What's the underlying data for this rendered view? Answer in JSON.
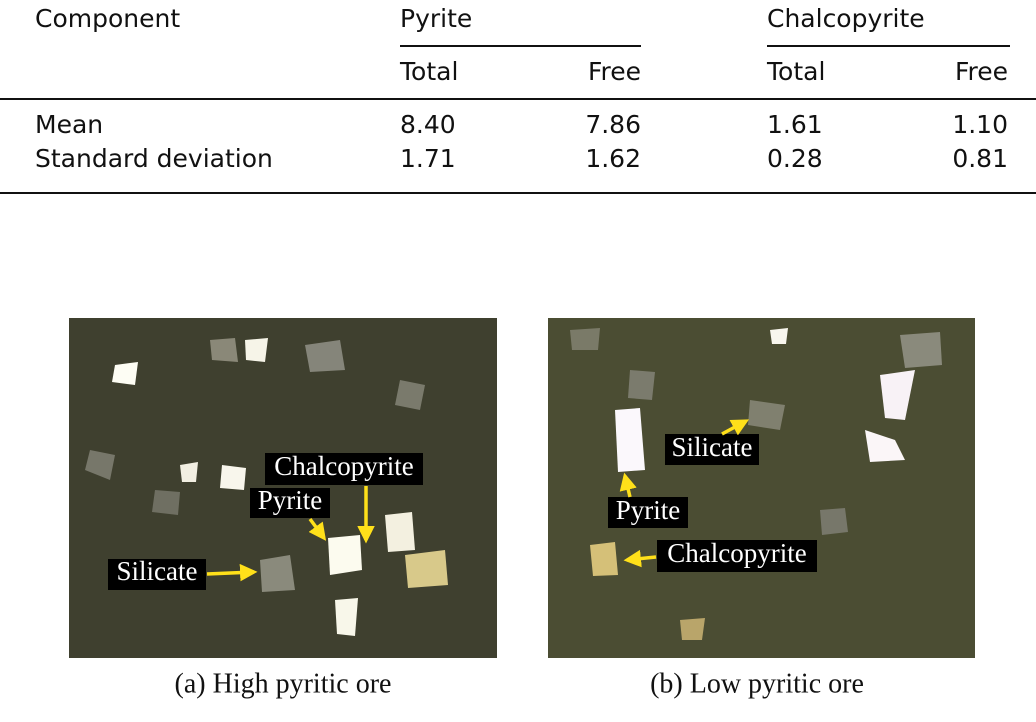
{
  "table": {
    "columns": [
      "Component",
      "Pyrite",
      "Chalcopyrite"
    ],
    "subcolumns": [
      "Total",
      "Free",
      "Total",
      "Free"
    ],
    "rows": [
      [
        "Mean",
        "8.40",
        "7.86",
        "1.61",
        "1.10"
      ],
      [
        "Standard deviation",
        "1.71",
        "1.62",
        "0.28",
        "0.81"
      ]
    ]
  },
  "figures": [
    {
      "labels": [
        "Chalcopyrite",
        "Pyrite",
        "Silicate"
      ],
      "caption": "(a) High pyritic ore"
    },
    {
      "labels": [
        "Silicate",
        "Pyrite",
        "Chalcopyrite"
      ],
      "caption": "(b) Low pyritic ore"
    }
  ]
}
